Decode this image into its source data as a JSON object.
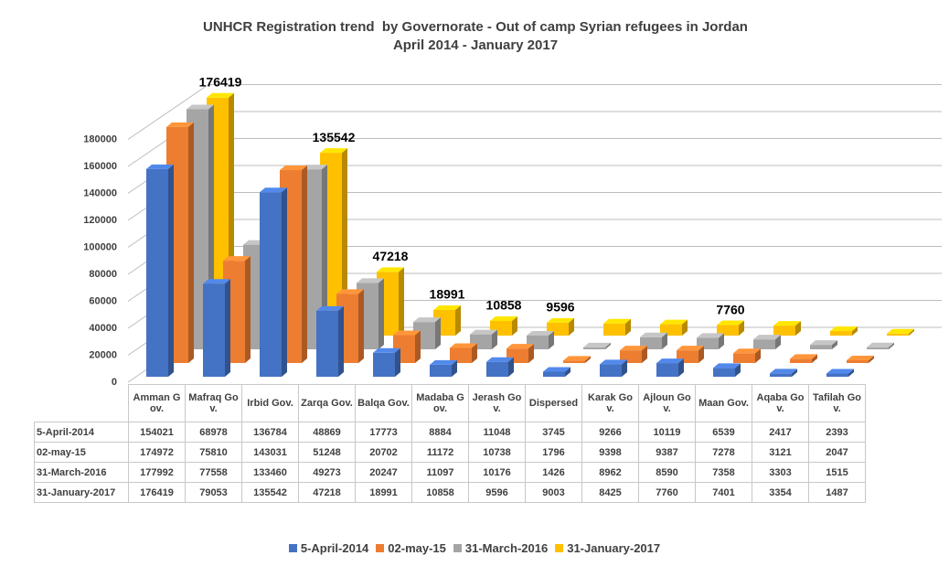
{
  "chart_data": {
    "type": "bar3d",
    "title": "UNHCR Registration trend  by Governorate - Out of camp Syrian refugees in Jordan",
    "subtitle": "April 2014 - January 2017",
    "categories": [
      "Amman Gov.",
      "Mafraq Gov.",
      "Irbid Gov.",
      "Zarqa Gov.",
      "Balqa Gov.",
      "Madaba Gov.",
      "Jerash Gov.",
      "Dispersed",
      "Karak Gov.",
      "Ajloun Gov.",
      "Maan Gov.",
      "Aqaba Gov.",
      "Tafilah Gov."
    ],
    "series": [
      {
        "name": "5-April-2014",
        "color": "#4472c4",
        "values": [
          154021,
          68978,
          136784,
          48869,
          17773,
          8884,
          11048,
          3745,
          9266,
          10119,
          6539,
          2417,
          2393
        ]
      },
      {
        "name": "02-may-15",
        "color": "#ed7d31",
        "values": [
          174972,
          75810,
          143031,
          51248,
          20702,
          11172,
          10738,
          1796,
          9398,
          9387,
          7278,
          3121,
          2047
        ]
      },
      {
        "name": "31-March-2016",
        "color": "#a5a5a5",
        "values": [
          177992,
          77558,
          133460,
          49273,
          20247,
          11097,
          10176,
          1426,
          8962,
          8590,
          7358,
          3303,
          1515
        ]
      },
      {
        "name": "31-January-2017",
        "color": "#ffc000",
        "values": [
          176419,
          79053,
          135542,
          47218,
          18991,
          10858,
          9596,
          9003,
          8425,
          7760,
          7401,
          3354,
          1487
        ],
        "value_labels": [
          "176419",
          "79053",
          "135542",
          "47218",
          "18991",
          "10858",
          "9596",
          null,
          null,
          "7760",
          null,
          null,
          null
        ]
      }
    ],
    "ylim": [
      0,
      200000
    ],
    "yticks": [
      0,
      20000,
      40000,
      60000,
      80000,
      100000,
      120000,
      140000,
      160000,
      180000
    ],
    "grid": true,
    "legend": "bottom",
    "data_table": true
  }
}
